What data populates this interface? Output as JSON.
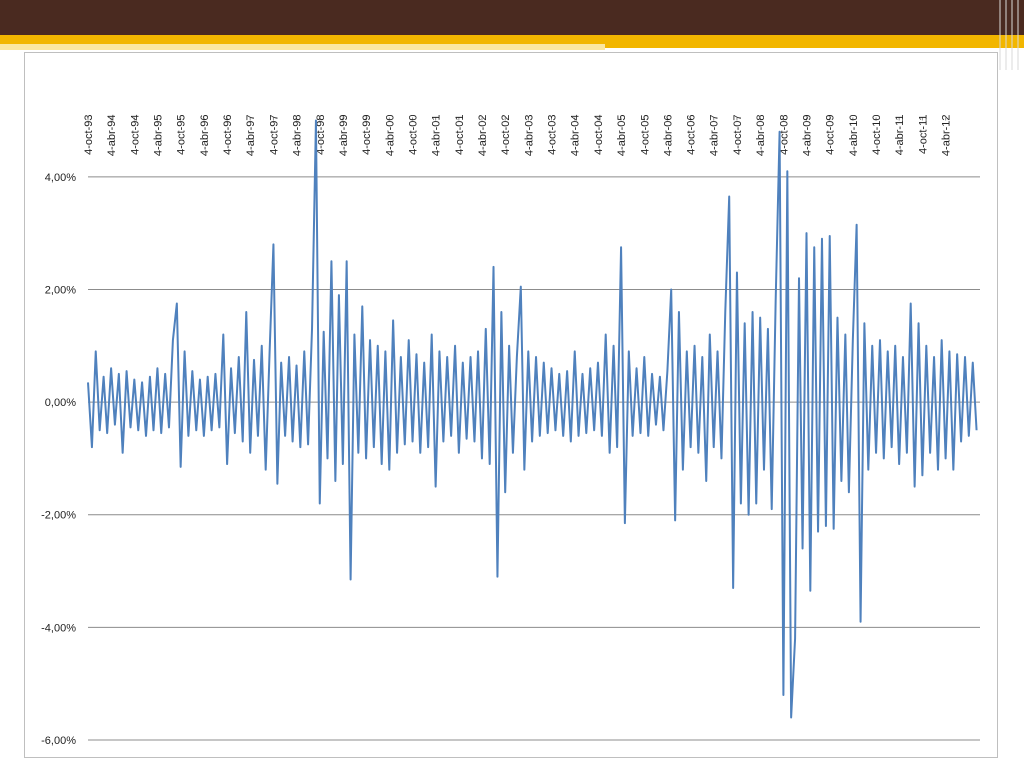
{
  "chart_data": {
    "type": "line",
    "color": "#4f81bd",
    "grid": true,
    "xlim": [
      "1993-10-04",
      "2012-12-31"
    ],
    "xticks": [
      {
        "value": "1993-10-04",
        "label": "4-oct-93"
      },
      {
        "value": "1994-04-04",
        "label": "4-abr-94"
      },
      {
        "value": "1994-10-04",
        "label": "4-oct-94"
      },
      {
        "value": "1995-04-04",
        "label": "4-abr-95"
      },
      {
        "value": "1995-10-04",
        "label": "4-oct-95"
      },
      {
        "value": "1996-04-04",
        "label": "4-abr-96"
      },
      {
        "value": "1996-10-04",
        "label": "4-oct-96"
      },
      {
        "value": "1997-04-04",
        "label": "4-abr-97"
      },
      {
        "value": "1997-10-04",
        "label": "4-oct-97"
      },
      {
        "value": "1998-04-04",
        "label": "4-abr-98"
      },
      {
        "value": "1998-10-04",
        "label": "4-oct-98"
      },
      {
        "value": "1999-04-04",
        "label": "4-abr-99"
      },
      {
        "value": "1999-10-04",
        "label": "4-oct-99"
      },
      {
        "value": "2000-04-04",
        "label": "4-abr-00"
      },
      {
        "value": "2000-10-04",
        "label": "4-oct-00"
      },
      {
        "value": "2001-04-04",
        "label": "4-abr-01"
      },
      {
        "value": "2001-10-04",
        "label": "4-oct-01"
      },
      {
        "value": "2002-04-04",
        "label": "4-abr-02"
      },
      {
        "value": "2002-10-04",
        "label": "4-oct-02"
      },
      {
        "value": "2003-04-04",
        "label": "4-abr-03"
      },
      {
        "value": "2003-10-04",
        "label": "4-oct-03"
      },
      {
        "value": "2004-04-04",
        "label": "4-abr-04"
      },
      {
        "value": "2004-10-04",
        "label": "4-oct-04"
      },
      {
        "value": "2005-04-04",
        "label": "4-abr-05"
      },
      {
        "value": "2005-10-04",
        "label": "4-oct-05"
      },
      {
        "value": "2006-04-04",
        "label": "4-abr-06"
      },
      {
        "value": "2006-10-04",
        "label": "4-oct-06"
      },
      {
        "value": "2007-04-04",
        "label": "4-abr-07"
      },
      {
        "value": "2007-10-04",
        "label": "4-oct-07"
      },
      {
        "value": "2008-04-04",
        "label": "4-abr-08"
      },
      {
        "value": "2008-10-04",
        "label": "4-oct-08"
      },
      {
        "value": "2009-04-04",
        "label": "4-abr-09"
      },
      {
        "value": "2009-10-04",
        "label": "4-oct-09"
      },
      {
        "value": "2010-04-04",
        "label": "4-abr-10"
      },
      {
        "value": "2010-10-04",
        "label": "4-oct-10"
      },
      {
        "value": "2011-04-04",
        "label": "4-abr-11"
      },
      {
        "value": "2011-10-04",
        "label": "4-oct-11"
      },
      {
        "value": "2012-04-04",
        "label": "4-abr-12"
      }
    ],
    "ylim": [
      -6,
      5
    ],
    "yticks": [
      {
        "value": -6,
        "label": "-6,00%"
      },
      {
        "value": -4,
        "label": "-4,00%"
      },
      {
        "value": -2,
        "label": "-2,00%"
      },
      {
        "value": 0,
        "label": "0,00%"
      },
      {
        "value": 2,
        "label": "2,00%"
      },
      {
        "value": 4,
        "label": "4,00%"
      }
    ],
    "x": [
      "1993-10-04",
      "1993-11-04",
      "1993-12-04",
      "1994-01-04",
      "1994-02-04",
      "1994-03-04",
      "1994-04-04",
      "1994-05-04",
      "1994-06-04",
      "1994-07-04",
      "1994-08-04",
      "1994-09-04",
      "1994-10-04",
      "1994-11-04",
      "1994-12-04",
      "1995-01-04",
      "1995-02-04",
      "1995-03-04",
      "1995-04-04",
      "1995-05-04",
      "1995-06-04",
      "1995-07-04",
      "1995-08-04",
      "1995-09-04",
      "1995-10-04",
      "1995-11-04",
      "1995-12-04",
      "1996-01-04",
      "1996-02-04",
      "1996-03-04",
      "1996-04-04",
      "1996-05-04",
      "1996-06-04",
      "1996-07-04",
      "1996-08-04",
      "1996-09-04",
      "1996-10-04",
      "1996-11-04",
      "1996-12-04",
      "1997-01-04",
      "1997-02-04",
      "1997-03-04",
      "1997-04-04",
      "1997-05-04",
      "1997-06-04",
      "1997-07-04",
      "1997-08-04",
      "1997-09-04",
      "1997-10-04",
      "1997-11-04",
      "1997-12-04",
      "1998-01-04",
      "1998-02-04",
      "1998-03-04",
      "1998-04-04",
      "1998-05-04",
      "1998-06-04",
      "1998-07-04",
      "1998-08-04",
      "1998-09-04",
      "1998-10-04",
      "1998-11-04",
      "1998-12-04",
      "1999-01-04",
      "1999-02-04",
      "1999-03-04",
      "1999-04-04",
      "1999-05-04",
      "1999-06-04",
      "1999-07-04",
      "1999-08-04",
      "1999-09-04",
      "1999-10-04",
      "1999-11-04",
      "1999-12-04",
      "2000-01-04",
      "2000-02-04",
      "2000-03-04",
      "2000-04-04",
      "2000-05-04",
      "2000-06-04",
      "2000-07-04",
      "2000-08-04",
      "2000-09-04",
      "2000-10-04",
      "2000-11-04",
      "2000-12-04",
      "2001-01-04",
      "2001-02-04",
      "2001-03-04",
      "2001-04-04",
      "2001-05-04",
      "2001-06-04",
      "2001-07-04",
      "2001-08-04",
      "2001-09-04",
      "2001-10-04",
      "2001-11-04",
      "2001-12-04",
      "2002-01-04",
      "2002-02-04",
      "2002-03-04",
      "2002-04-04",
      "2002-05-04",
      "2002-06-04",
      "2002-07-04",
      "2002-08-04",
      "2002-09-04",
      "2002-10-04",
      "2002-11-04",
      "2002-12-04",
      "2003-01-04",
      "2003-02-04",
      "2003-03-04",
      "2003-04-04",
      "2003-05-04",
      "2003-06-04",
      "2003-07-04",
      "2003-08-04",
      "2003-09-04",
      "2003-10-04",
      "2003-11-04",
      "2003-12-04",
      "2004-01-04",
      "2004-02-04",
      "2004-03-04",
      "2004-04-04",
      "2004-05-04",
      "2004-06-04",
      "2004-07-04",
      "2004-08-04",
      "2004-09-04",
      "2004-10-04",
      "2004-11-04",
      "2004-12-04",
      "2005-01-04",
      "2005-02-04",
      "2005-03-04",
      "2005-04-04",
      "2005-05-04",
      "2005-06-04",
      "2005-07-04",
      "2005-08-04",
      "2005-09-04",
      "2005-10-04",
      "2005-11-04",
      "2005-12-04",
      "2006-01-04",
      "2006-02-04",
      "2006-03-04",
      "2006-04-04",
      "2006-05-04",
      "2006-06-04",
      "2006-07-04",
      "2006-08-04",
      "2006-09-04",
      "2006-10-04",
      "2006-11-04",
      "2006-12-04",
      "2007-01-04",
      "2007-02-04",
      "2007-03-04",
      "2007-04-04",
      "2007-05-04",
      "2007-06-04",
      "2007-07-04",
      "2007-08-04",
      "2007-09-04",
      "2007-10-04",
      "2007-11-04",
      "2007-12-04",
      "2008-01-04",
      "2008-02-04",
      "2008-03-04",
      "2008-04-04",
      "2008-05-04",
      "2008-06-04",
      "2008-07-04",
      "2008-08-04",
      "2008-09-04",
      "2008-10-04",
      "2008-11-04",
      "2008-12-04",
      "2009-01-04",
      "2009-02-04",
      "2009-03-04",
      "2009-04-04",
      "2009-05-04",
      "2009-06-04",
      "2009-07-04",
      "2009-08-04",
      "2009-09-04",
      "2009-10-04",
      "2009-11-04",
      "2009-12-04",
      "2010-01-04",
      "2010-02-04",
      "2010-03-04",
      "2010-04-04",
      "2010-05-04",
      "2010-06-04",
      "2010-07-04",
      "2010-08-04",
      "2010-09-04",
      "2010-10-04",
      "2010-11-04",
      "2010-12-04",
      "2011-01-04",
      "2011-02-04",
      "2011-03-04",
      "2011-04-04",
      "2011-05-04",
      "2011-06-04",
      "2011-07-04",
      "2011-08-04",
      "2011-09-04",
      "2011-10-04",
      "2011-11-04",
      "2011-12-04",
      "2012-01-04",
      "2012-02-04",
      "2012-03-04",
      "2012-04-04",
      "2012-05-04",
      "2012-06-04",
      "2012-07-04",
      "2012-08-04",
      "2012-09-04",
      "2012-10-04",
      "2012-11-04",
      "2012-12-04"
    ],
    "values": [
      0.35,
      -0.8,
      0.9,
      -0.5,
      0.45,
      -0.55,
      0.6,
      -0.4,
      0.5,
      -0.9,
      0.55,
      -0.45,
      0.4,
      -0.5,
      0.35,
      -0.6,
      0.45,
      -0.5,
      0.6,
      -0.55,
      0.5,
      -0.45,
      1.1,
      1.75,
      -1.15,
      0.9,
      -0.6,
      0.55,
      -0.5,
      0.4,
      -0.6,
      0.45,
      -0.5,
      0.5,
      -0.45,
      1.2,
      -1.1,
      0.6,
      -0.55,
      0.8,
      -0.7,
      1.6,
      -0.9,
      0.75,
      -0.6,
      1.0,
      -1.2,
      0.9,
      2.8,
      -1.45,
      0.7,
      -0.6,
      0.8,
      -0.7,
      0.65,
      -0.8,
      0.9,
      -0.75,
      1.3,
      5.0,
      -1.8,
      1.25,
      -1.0,
      2.5,
      -1.4,
      1.9,
      -1.1,
      2.5,
      -3.15,
      1.2,
      -0.9,
      1.7,
      -1.0,
      1.1,
      -0.8,
      1.0,
      -1.1,
      0.9,
      -1.2,
      1.45,
      -0.9,
      0.8,
      -0.75,
      1.1,
      -0.7,
      0.85,
      -0.9,
      0.7,
      -0.8,
      1.2,
      -1.5,
      0.9,
      -0.7,
      0.8,
      -0.6,
      1.0,
      -0.9,
      0.7,
      -0.65,
      0.8,
      -0.7,
      0.9,
      -1.0,
      1.3,
      -1.1,
      2.4,
      -3.1,
      1.6,
      -1.6,
      1.0,
      -0.9,
      0.8,
      2.05,
      -1.2,
      0.9,
      -0.7,
      0.8,
      -0.6,
      0.7,
      -0.55,
      0.6,
      -0.5,
      0.5,
      -0.6,
      0.55,
      -0.7,
      0.9,
      -0.6,
      0.5,
      -0.55,
      0.6,
      -0.5,
      0.7,
      -0.6,
      1.2,
      -0.9,
      1.0,
      -0.8,
      2.75,
      -2.15,
      0.9,
      -0.6,
      0.6,
      -0.55,
      0.8,
      -0.6,
      0.5,
      -0.4,
      0.45,
      -0.5,
      0.55,
      2.0,
      -2.1,
      1.6,
      -1.2,
      0.9,
      -0.8,
      1.0,
      -0.9,
      0.8,
      -1.4,
      1.2,
      -0.8,
      0.9,
      -1.0,
      1.6,
      3.65,
      -3.3,
      2.3,
      -1.8,
      1.4,
      -2.0,
      1.6,
      -1.8,
      1.5,
      -1.2,
      1.3,
      -1.9,
      1.8,
      4.8,
      -5.2,
      4.1,
      -5.6,
      -4.2,
      2.2,
      -2.6,
      3.0,
      -3.35,
      2.75,
      -2.3,
      2.9,
      -2.2,
      2.95,
      -2.25,
      1.5,
      -1.4,
      1.2,
      -1.6,
      1.1,
      3.15,
      -3.9,
      1.4,
      -1.2,
      1.0,
      -0.9,
      1.1,
      -1.0,
      0.9,
      -0.8,
      1.0,
      -1.1,
      0.8,
      -0.9,
      1.75,
      -1.5,
      1.4,
      -1.3,
      1.0,
      -0.9,
      0.8,
      -1.2,
      1.1,
      -1.0,
      0.9,
      -1.2,
      0.85,
      -0.7,
      0.8,
      -0.6,
      0.7,
      -0.5
    ]
  }
}
